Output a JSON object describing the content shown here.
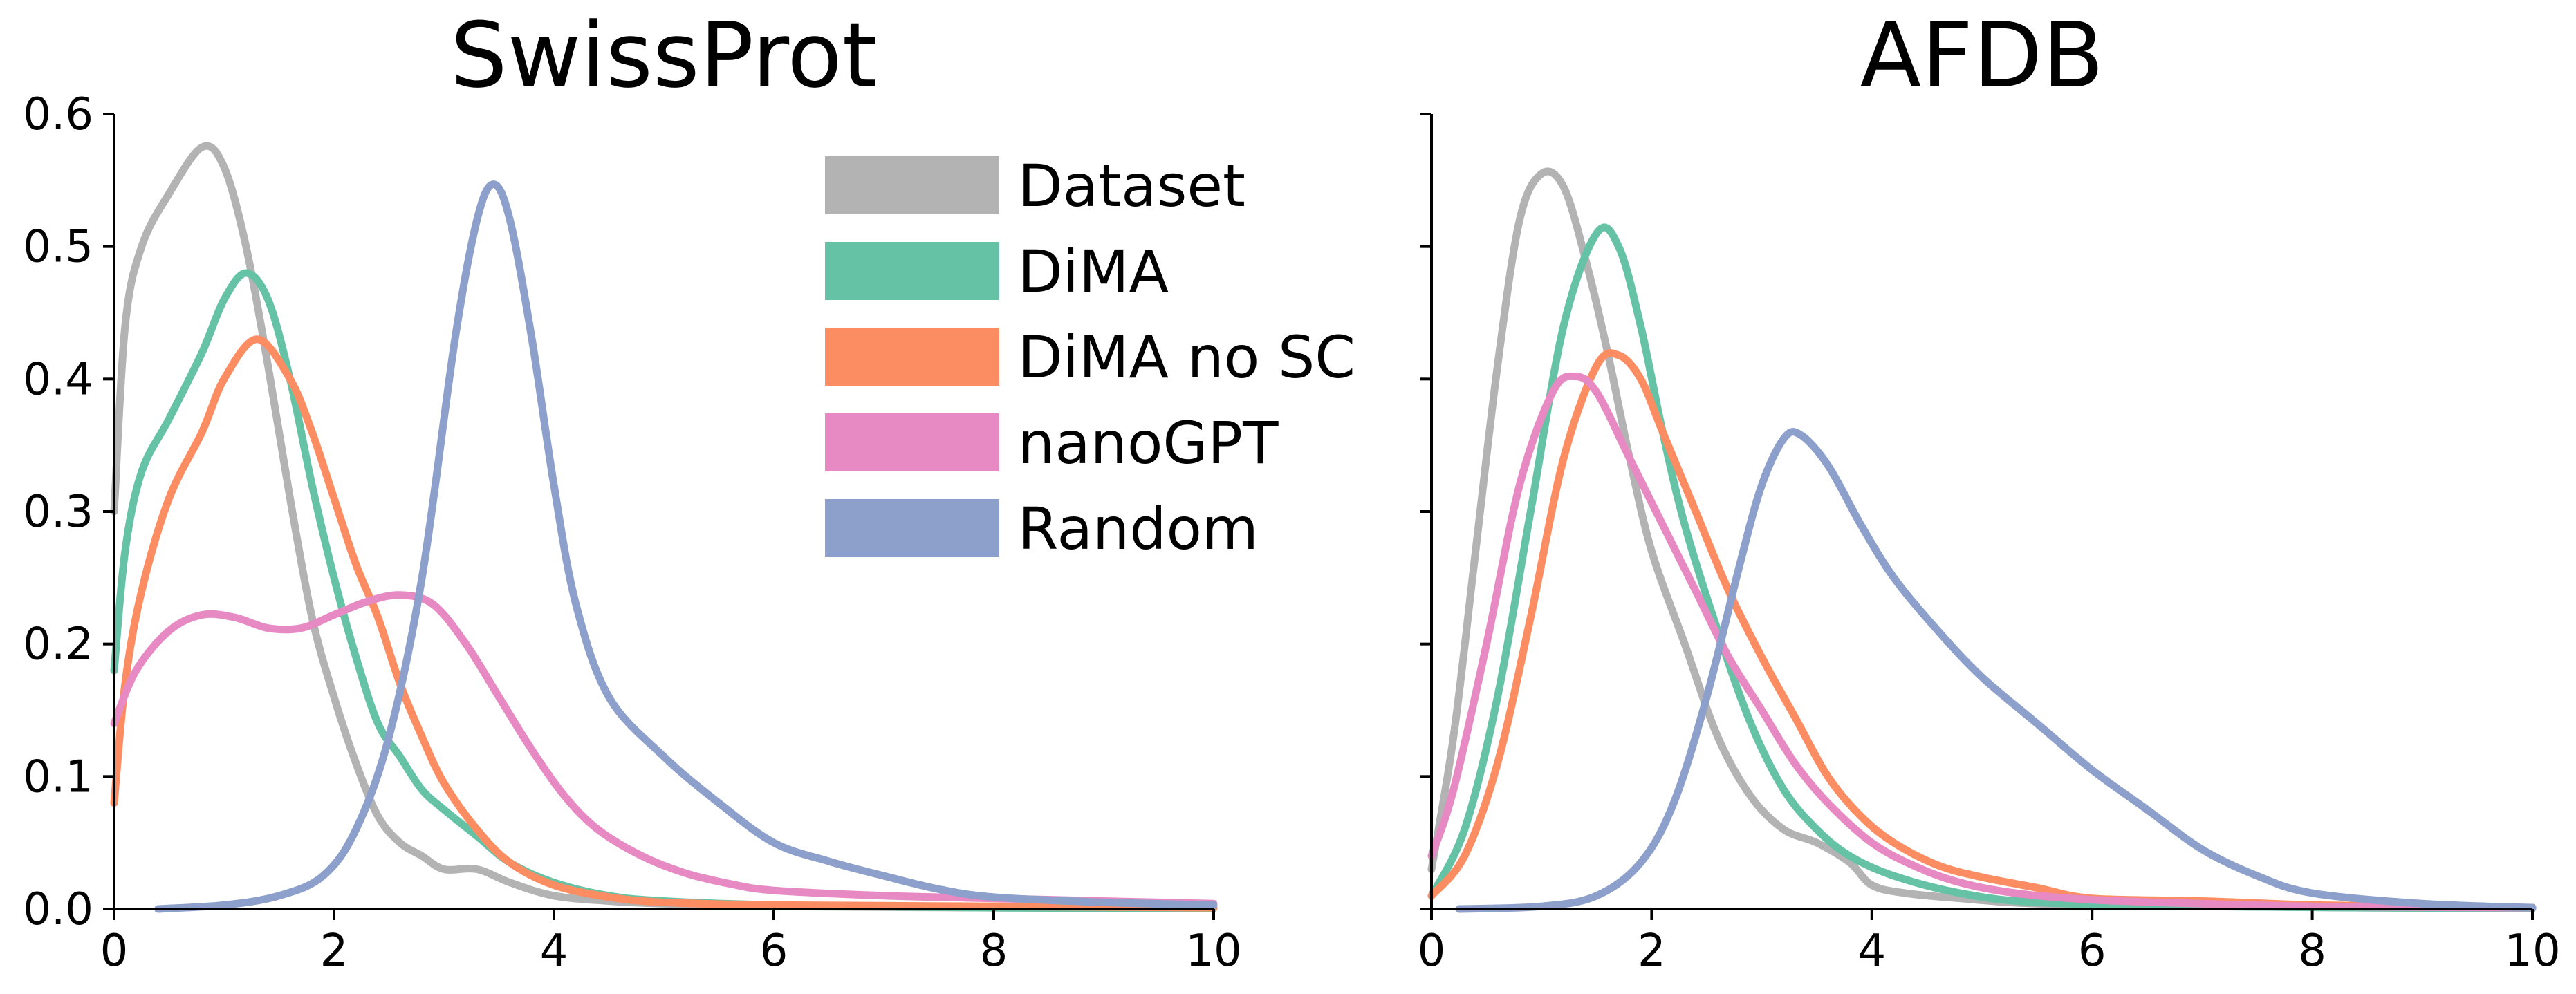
{
  "chart_data": [
    {
      "type": "line",
      "title": "SwissProt",
      "xlabel": "",
      "ylabel": "",
      "xlim": [
        0,
        10
      ],
      "ylim": [
        0,
        0.6
      ],
      "xticks": [
        0,
        2,
        4,
        6,
        8,
        10
      ],
      "xtick_labels": [
        "0",
        "2",
        "4",
        "6",
        "8",
        "10"
      ],
      "yticks": [
        0.0,
        0.1,
        0.2,
        0.3,
        0.4,
        0.5,
        0.6
      ],
      "ytick_labels": [
        "0.0",
        "0.1",
        "0.2",
        "0.3",
        "0.4",
        "0.5",
        "0.6"
      ],
      "legend": {
        "position": "upper-middle",
        "entries": [
          "Dataset",
          "DiMA",
          "DiMA no SC",
          "nanoGPT",
          "Random"
        ]
      },
      "series": [
        {
          "name": "Dataset",
          "color": "#b3b3b3",
          "points": [
            [
              0,
              0.3
            ],
            [
              0.1,
              0.44
            ],
            [
              0.25,
              0.5
            ],
            [
              0.5,
              0.54
            ],
            [
              0.8,
              0.575
            ],
            [
              1.0,
              0.56
            ],
            [
              1.2,
              0.5
            ],
            [
              1.4,
              0.41
            ],
            [
              1.6,
              0.31
            ],
            [
              1.8,
              0.22
            ],
            [
              2.0,
              0.16
            ],
            [
              2.2,
              0.11
            ],
            [
              2.4,
              0.07
            ],
            [
              2.6,
              0.05
            ],
            [
              2.8,
              0.04
            ],
            [
              3.0,
              0.03
            ],
            [
              3.3,
              0.03
            ],
            [
              3.6,
              0.02
            ],
            [
              4.0,
              0.01
            ],
            [
              4.5,
              0.006
            ],
            [
              5.0,
              0.004
            ],
            [
              6.0,
              0.002
            ],
            [
              8.0,
              0.001
            ],
            [
              10.0,
              0.0005
            ]
          ]
        },
        {
          "name": "DiMA",
          "color": "#66c2a5",
          "points": [
            [
              0,
              0.18
            ],
            [
              0.1,
              0.27
            ],
            [
              0.25,
              0.33
            ],
            [
              0.5,
              0.37
            ],
            [
              0.8,
              0.42
            ],
            [
              1.0,
              0.46
            ],
            [
              1.2,
              0.48
            ],
            [
              1.4,
              0.46
            ],
            [
              1.6,
              0.4
            ],
            [
              1.8,
              0.32
            ],
            [
              2.0,
              0.25
            ],
            [
              2.2,
              0.19
            ],
            [
              2.4,
              0.14
            ],
            [
              2.6,
              0.115
            ],
            [
              2.8,
              0.09
            ],
            [
              3.0,
              0.075
            ],
            [
              3.3,
              0.055
            ],
            [
              3.6,
              0.035
            ],
            [
              4.0,
              0.02
            ],
            [
              4.5,
              0.01
            ],
            [
              5.0,
              0.006
            ],
            [
              6.0,
              0.003
            ],
            [
              8.0,
              0.001
            ],
            [
              10.0,
              0.0005
            ]
          ]
        },
        {
          "name": "DiMA no SC",
          "color": "#fc8d62",
          "points": [
            [
              0,
              0.08
            ],
            [
              0.1,
              0.17
            ],
            [
              0.25,
              0.24
            ],
            [
              0.5,
              0.31
            ],
            [
              0.8,
              0.36
            ],
            [
              1.0,
              0.4
            ],
            [
              1.3,
              0.43
            ],
            [
              1.6,
              0.4
            ],
            [
              1.8,
              0.36
            ],
            [
              2.0,
              0.31
            ],
            [
              2.2,
              0.26
            ],
            [
              2.4,
              0.22
            ],
            [
              2.6,
              0.17
            ],
            [
              2.8,
              0.13
            ],
            [
              3.0,
              0.095
            ],
            [
              3.3,
              0.06
            ],
            [
              3.6,
              0.035
            ],
            [
              4.0,
              0.018
            ],
            [
              4.5,
              0.009
            ],
            [
              5.0,
              0.005
            ],
            [
              6.0,
              0.003
            ],
            [
              8.0,
              0.002
            ],
            [
              10.0,
              0.001
            ]
          ]
        },
        {
          "name": "nanoGPT",
          "color": "#e78ac3",
          "points": [
            [
              0,
              0.14
            ],
            [
              0.2,
              0.18
            ],
            [
              0.5,
              0.21
            ],
            [
              0.8,
              0.222
            ],
            [
              1.1,
              0.22
            ],
            [
              1.4,
              0.212
            ],
            [
              1.7,
              0.212
            ],
            [
              2.0,
              0.222
            ],
            [
              2.3,
              0.232
            ],
            [
              2.6,
              0.237
            ],
            [
              2.9,
              0.23
            ],
            [
              3.2,
              0.2
            ],
            [
              3.5,
              0.16
            ],
            [
              3.8,
              0.12
            ],
            [
              4.1,
              0.085
            ],
            [
              4.4,
              0.06
            ],
            [
              4.8,
              0.04
            ],
            [
              5.2,
              0.027
            ],
            [
              5.6,
              0.019
            ],
            [
              6.0,
              0.014
            ],
            [
              7.0,
              0.01
            ],
            [
              8.0,
              0.008
            ],
            [
              9.0,
              0.006
            ],
            [
              10.0,
              0.004
            ]
          ]
        },
        {
          "name": "Random",
          "color": "#8da0cb",
          "points": [
            [
              0.4,
              0.0
            ],
            [
              1.0,
              0.003
            ],
            [
              1.5,
              0.01
            ],
            [
              1.9,
              0.025
            ],
            [
              2.2,
              0.06
            ],
            [
              2.5,
              0.13
            ],
            [
              2.8,
              0.25
            ],
            [
              3.1,
              0.43
            ],
            [
              3.3,
              0.52
            ],
            [
              3.45,
              0.547
            ],
            [
              3.6,
              0.52
            ],
            [
              3.8,
              0.43
            ],
            [
              4.0,
              0.32
            ],
            [
              4.2,
              0.23
            ],
            [
              4.5,
              0.16
            ],
            [
              5.0,
              0.115
            ],
            [
              5.5,
              0.08
            ],
            [
              6.0,
              0.05
            ],
            [
              6.5,
              0.036
            ],
            [
              7.0,
              0.025
            ],
            [
              7.5,
              0.015
            ],
            [
              8.0,
              0.009
            ],
            [
              9.0,
              0.005
            ],
            [
              10.0,
              0.003
            ]
          ]
        }
      ]
    },
    {
      "type": "line",
      "title": "AFDB",
      "xlabel": "",
      "ylabel": "",
      "xlim": [
        0,
        10
      ],
      "ylim": [
        0,
        0.6
      ],
      "xticks": [
        0,
        2,
        4,
        6,
        8,
        10
      ],
      "xtick_labels": [
        "0",
        "2",
        "4",
        "6",
        "8",
        "10"
      ],
      "yticks": [
        0.0,
        0.1,
        0.2,
        0.3,
        0.4,
        0.5,
        0.6
      ],
      "ytick_labels": [],
      "series": [
        {
          "name": "Dataset",
          "color": "#b3b3b3",
          "points": [
            [
              0,
              0.03
            ],
            [
              0.2,
              0.13
            ],
            [
              0.4,
              0.27
            ],
            [
              0.6,
              0.41
            ],
            [
              0.8,
              0.52
            ],
            [
              1.0,
              0.555
            ],
            [
              1.2,
              0.545
            ],
            [
              1.4,
              0.49
            ],
            [
              1.6,
              0.42
            ],
            [
              1.8,
              0.34
            ],
            [
              2.0,
              0.27
            ],
            [
              2.3,
              0.2
            ],
            [
              2.6,
              0.13
            ],
            [
              2.9,
              0.085
            ],
            [
              3.2,
              0.06
            ],
            [
              3.5,
              0.05
            ],
            [
              3.8,
              0.035
            ],
            [
              4.0,
              0.018
            ],
            [
              4.3,
              0.012
            ],
            [
              4.8,
              0.008
            ],
            [
              5.5,
              0.004
            ],
            [
              7.0,
              0.002
            ],
            [
              8.5,
              0.001
            ],
            [
              10.0,
              0.0005
            ]
          ]
        },
        {
          "name": "DiMA",
          "color": "#66c2a5",
          "points": [
            [
              0,
              0.01
            ],
            [
              0.3,
              0.06
            ],
            [
              0.6,
              0.16
            ],
            [
              0.9,
              0.3
            ],
            [
              1.2,
              0.44
            ],
            [
              1.5,
              0.51
            ],
            [
              1.7,
              0.5
            ],
            [
              1.9,
              0.44
            ],
            [
              2.1,
              0.36
            ],
            [
              2.3,
              0.29
            ],
            [
              2.6,
              0.21
            ],
            [
              2.9,
              0.14
            ],
            [
              3.2,
              0.09
            ],
            [
              3.5,
              0.06
            ],
            [
              3.8,
              0.04
            ],
            [
              4.2,
              0.025
            ],
            [
              4.8,
              0.012
            ],
            [
              5.5,
              0.005
            ],
            [
              7.0,
              0.002
            ],
            [
              8.5,
              0.001
            ],
            [
              10.0,
              0.0005
            ]
          ]
        },
        {
          "name": "DiMA no SC",
          "color": "#fc8d62",
          "points": [
            [
              0,
              0.01
            ],
            [
              0.3,
              0.04
            ],
            [
              0.6,
              0.11
            ],
            [
              0.9,
              0.22
            ],
            [
              1.2,
              0.34
            ],
            [
              1.5,
              0.41
            ],
            [
              1.7,
              0.418
            ],
            [
              1.9,
              0.4
            ],
            [
              2.1,
              0.36
            ],
            [
              2.4,
              0.3
            ],
            [
              2.7,
              0.24
            ],
            [
              3.0,
              0.19
            ],
            [
              3.3,
              0.145
            ],
            [
              3.6,
              0.1
            ],
            [
              3.9,
              0.07
            ],
            [
              4.2,
              0.05
            ],
            [
              4.6,
              0.033
            ],
            [
              5.0,
              0.024
            ],
            [
              5.5,
              0.016
            ],
            [
              6.0,
              0.008
            ],
            [
              7.0,
              0.006
            ],
            [
              8.0,
              0.003
            ],
            [
              9.0,
              0.002
            ],
            [
              10.0,
              0.001
            ]
          ]
        },
        {
          "name": "nanoGPT",
          "color": "#e78ac3",
          "points": [
            [
              0,
              0.04
            ],
            [
              0.2,
              0.09
            ],
            [
              0.5,
              0.2
            ],
            [
              0.8,
              0.32
            ],
            [
              1.1,
              0.39
            ],
            [
              1.3,
              0.402
            ],
            [
              1.5,
              0.39
            ],
            [
              1.8,
              0.34
            ],
            [
              2.1,
              0.29
            ],
            [
              2.4,
              0.24
            ],
            [
              2.7,
              0.19
            ],
            [
              3.0,
              0.15
            ],
            [
              3.3,
              0.11
            ],
            [
              3.6,
              0.08
            ],
            [
              4.0,
              0.05
            ],
            [
              4.4,
              0.032
            ],
            [
              4.8,
              0.02
            ],
            [
              5.3,
              0.012
            ],
            [
              6.0,
              0.007
            ],
            [
              7.0,
              0.004
            ],
            [
              8.0,
              0.002
            ],
            [
              10.0,
              0.001
            ]
          ]
        },
        {
          "name": "Random",
          "color": "#8da0cb",
          "points": [
            [
              0.25,
              0.0
            ],
            [
              1.0,
              0.002
            ],
            [
              1.5,
              0.01
            ],
            [
              1.9,
              0.035
            ],
            [
              2.2,
              0.08
            ],
            [
              2.5,
              0.16
            ],
            [
              2.8,
              0.26
            ],
            [
              3.0,
              0.32
            ],
            [
              3.2,
              0.355
            ],
            [
              3.35,
              0.358
            ],
            [
              3.6,
              0.335
            ],
            [
              3.9,
              0.29
            ],
            [
              4.2,
              0.25
            ],
            [
              4.6,
              0.21
            ],
            [
              5.0,
              0.175
            ],
            [
              5.5,
              0.14
            ],
            [
              6.0,
              0.105
            ],
            [
              6.5,
              0.075
            ],
            [
              7.0,
              0.045
            ],
            [
              7.5,
              0.025
            ],
            [
              8.0,
              0.012
            ],
            [
              9.0,
              0.004
            ],
            [
              10.0,
              0.001
            ]
          ]
        }
      ]
    }
  ]
}
